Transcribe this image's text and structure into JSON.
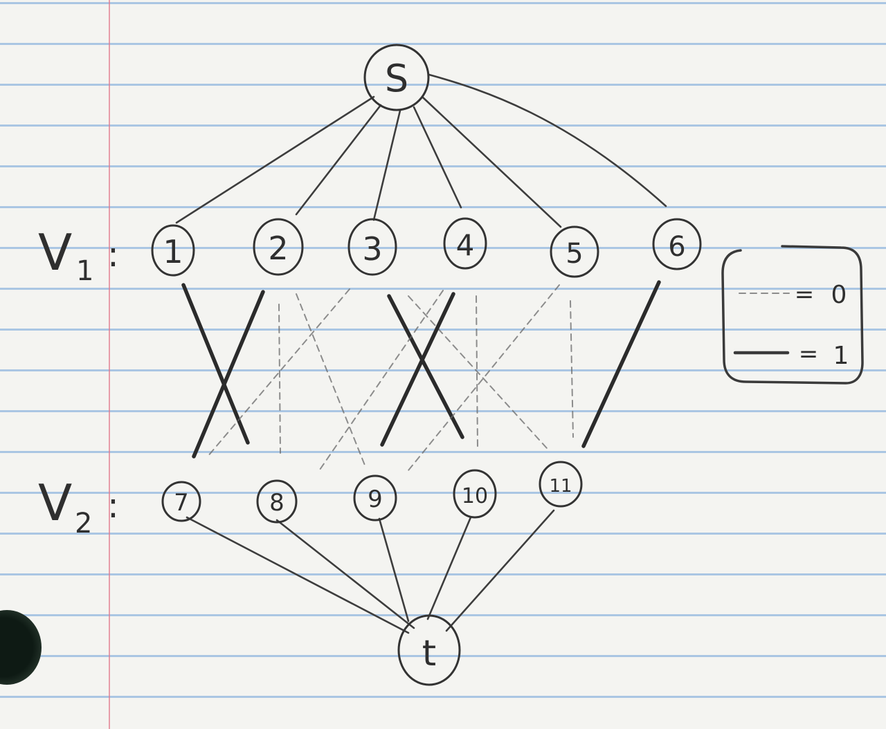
{
  "diagram": {
    "source_node": "S",
    "sink_node": "t",
    "rows": [
      {
        "label": "V",
        "subscript": "1",
        "suffix": ":",
        "nodes": [
          "1",
          "2",
          "3",
          "4",
          "5",
          "6"
        ]
      },
      {
        "label": "V",
        "subscript": "2",
        "suffix": ":",
        "nodes": [
          "7",
          "8",
          "9",
          "10",
          "11"
        ]
      }
    ],
    "legend": [
      {
        "style": "dashed",
        "value": "0"
      },
      {
        "style": "solid",
        "value": "1"
      }
    ],
    "edges_v1_v2": [
      {
        "from": "1",
        "to": "8",
        "value": 1
      },
      {
        "from": "2",
        "to": "7",
        "value": 1
      },
      {
        "from": "2",
        "to": "8",
        "value": 0
      },
      {
        "from": "2",
        "to": "9",
        "value": 0
      },
      {
        "from": "3",
        "to": "7",
        "value": 0
      },
      {
        "from": "3",
        "to": "10",
        "value": 1
      },
      {
        "from": "4",
        "to": "9",
        "value": 1
      },
      {
        "from": "4",
        "to": "10",
        "value": 0
      },
      {
        "from": "4",
        "to": "8",
        "value": 0
      },
      {
        "from": "3",
        "to": "11",
        "value": 0
      },
      {
        "from": "5",
        "to": "8",
        "value": 0
      },
      {
        "from": "5",
        "to": "11",
        "value": 0
      },
      {
        "from": "6",
        "to": "11",
        "value": 1
      }
    ]
  },
  "colors": {
    "paper": "#f4f4f1",
    "rule_line": "#6ea0d7",
    "margin_line": "#e1788c",
    "pencil": "#3a3a3a"
  }
}
